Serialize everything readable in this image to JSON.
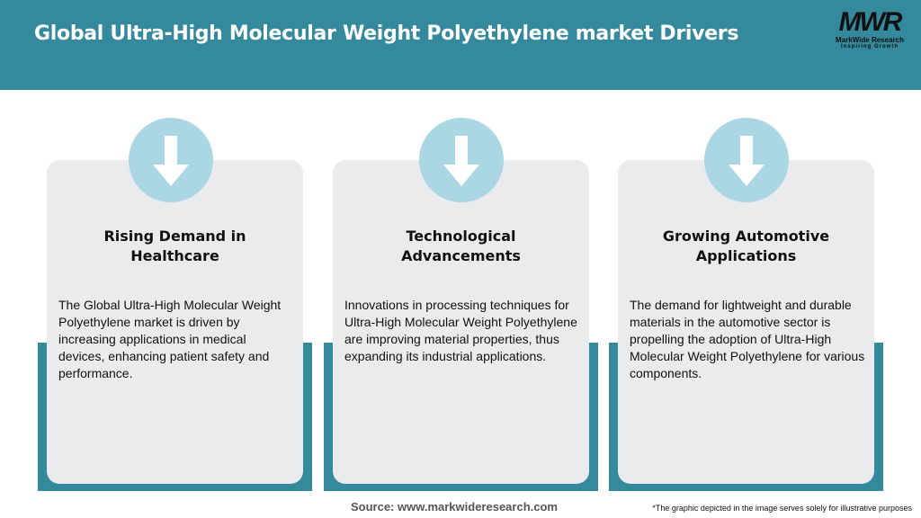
{
  "header": {
    "title": "Global Ultra-High Molecular Weight Polyethylene market Drivers",
    "bg_color": "#35899c"
  },
  "logo": {
    "mark": "MWR",
    "name": "MarkWide Research",
    "tagline": "Inspiring Growth"
  },
  "cards": [
    {
      "icon": "arrow-down-icon",
      "title": "Rising Demand in Healthcare",
      "description": "The Global Ultra-High Molecular Weight Polyethylene market is driven by increasing applications in medical devices, enhancing patient safety and performance."
    },
    {
      "icon": "arrow-down-icon",
      "title": "Technological Advancements",
      "description": "Innovations in processing techniques for Ultra-High Molecular Weight Polyethylene are improving material properties, thus expanding its industrial applications."
    },
    {
      "icon": "arrow-down-icon",
      "title": "Growing Automotive Applications",
      "description": "The demand for lightweight and durable materials in the automotive sector is propelling the adoption of Ultra-High Molecular Weight Polyethylene for various components."
    }
  ],
  "footer": {
    "source": "Source: www.markwideresearch.com",
    "note": "*The graphic depicted in the image serves solely for illustrative purposes"
  }
}
